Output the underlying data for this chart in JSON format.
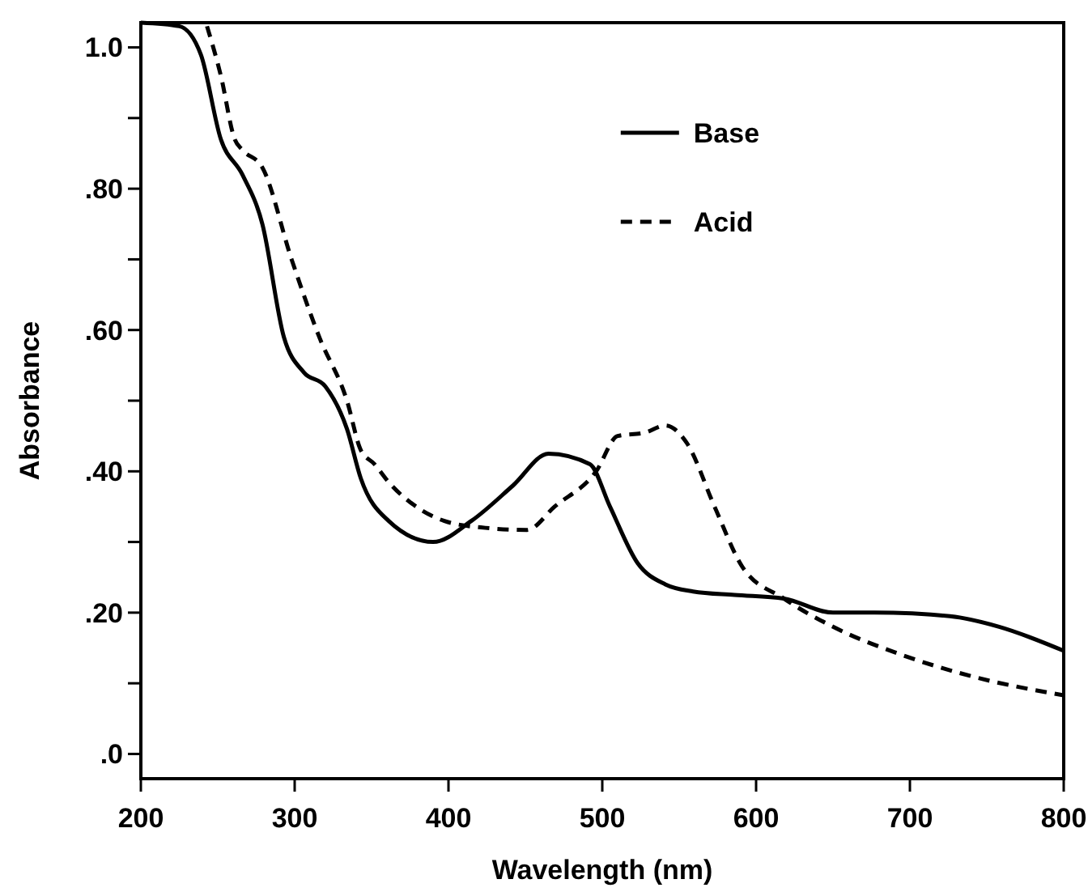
{
  "chart_data": {
    "type": "line",
    "xlabel": "Wavelength (nm)",
    "ylabel": "Absorbance",
    "xlim": [
      200,
      800
    ],
    "ylim": [
      -0.035,
      1.035
    ],
    "xticks": [
      200,
      300,
      400,
      500,
      600,
      700,
      800
    ],
    "yticks": [
      {
        "value": 0,
        "label": ".0"
      },
      {
        "value": 0.1,
        "label": null
      },
      {
        "value": 0.2,
        "label": ".20"
      },
      {
        "value": 0.3,
        "label": null
      },
      {
        "value": 0.4,
        "label": ".40"
      },
      {
        "value": 0.5,
        "label": null
      },
      {
        "value": 0.6,
        "label": ".60"
      },
      {
        "value": 0.7,
        "label": null
      },
      {
        "value": 0.8,
        "label": ".80"
      },
      {
        "value": 0.9,
        "label": null
      },
      {
        "value": 1.0,
        "label": "1.0"
      }
    ],
    "grid": false,
    "legend": "top right",
    "series": [
      {
        "name": "Base",
        "color": "#000000",
        "line_style": "solid",
        "x": [
          200,
          225,
          239,
          252,
          266,
          279,
          293,
          306,
          320,
          334,
          343,
          361,
          390,
          415,
          442,
          465,
          492,
          505,
          523,
          541,
          559,
          586,
          618,
          650,
          677,
          726,
          758,
          800
        ],
        "values": [
          1.035,
          1.03,
          0.99,
          0.87,
          0.82,
          0.75,
          0.59,
          0.54,
          0.52,
          0.46,
          0.39,
          0.33,
          0.3,
          0.33,
          0.38,
          0.425,
          0.41,
          0.35,
          0.27,
          0.24,
          0.23,
          0.225,
          0.22,
          0.2,
          0.2,
          0.195,
          0.18,
          0.146
        ]
      },
      {
        "name": "Acid",
        "color": "#000000",
        "line_style": "dashed",
        "x": [
          243,
          252,
          261,
          266,
          279,
          298,
          316,
          334,
          343,
          352,
          361,
          379,
          397,
          424,
          451,
          469,
          496,
          510,
          528,
          541,
          555,
          573,
          591,
          618,
          650,
          695,
          740,
          800
        ],
        "values": [
          1.03,
          0.96,
          0.87,
          0.855,
          0.83,
          0.7,
          0.59,
          0.5,
          0.43,
          0.41,
          0.385,
          0.35,
          0.33,
          0.32,
          0.317,
          0.35,
          0.4,
          0.45,
          0.455,
          0.465,
          0.44,
          0.35,
          0.265,
          0.22,
          0.18,
          0.14,
          0.11,
          0.083
        ]
      }
    ]
  }
}
